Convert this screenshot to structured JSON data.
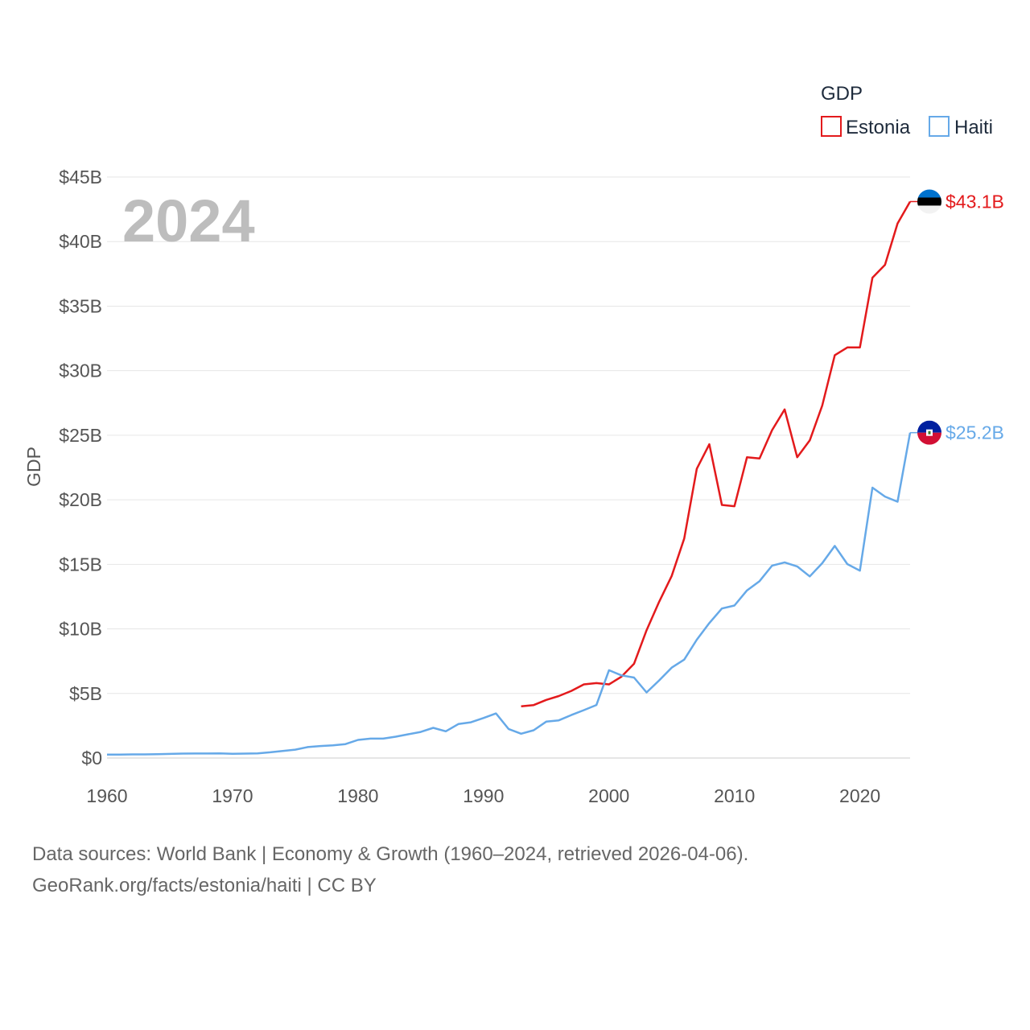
{
  "chart_data": {
    "type": "line",
    "legend_title": "GDP",
    "legend_position": "top-right",
    "ylabel": "GDP",
    "xlabel": "",
    "year_label": "2024",
    "xlim": [
      1960,
      2024
    ],
    "ylim": [
      0,
      45
    ],
    "x_ticks": [
      1960,
      1970,
      1980,
      1990,
      2000,
      2010,
      2020
    ],
    "x_tick_labels": [
      "1960",
      "1970",
      "1980",
      "1990",
      "2000",
      "2010",
      "2020"
    ],
    "y_ticks": [
      0,
      5,
      10,
      15,
      20,
      25,
      30,
      35,
      40,
      45
    ],
    "y_tick_labels": [
      "$0",
      "$5B",
      "$10B",
      "$15B",
      "$20B",
      "$25B",
      "$30B",
      "$35B",
      "$40B",
      "$45B"
    ],
    "grid": true,
    "series": [
      {
        "name": "Estonia",
        "color": "#e31a1c",
        "end_label": "$43.1B",
        "flag": "estonia-flag",
        "x": [
          1993,
          1994,
          1995,
          1996,
          1997,
          1998,
          1999,
          2000,
          2001,
          2002,
          2003,
          2004,
          2005,
          2006,
          2007,
          2008,
          2009,
          2010,
          2011,
          2012,
          2013,
          2014,
          2015,
          2016,
          2017,
          2018,
          2019,
          2020,
          2021,
          2022,
          2023,
          2024
        ],
        "values": [
          4.0,
          4.1,
          4.5,
          4.8,
          5.2,
          5.7,
          5.8,
          5.7,
          6.3,
          7.3,
          9.9,
          12.1,
          14.1,
          17.0,
          22.4,
          24.3,
          19.6,
          19.5,
          23.3,
          23.2,
          25.4,
          27.0,
          23.3,
          24.6,
          27.3,
          31.2,
          31.8,
          31.8,
          37.2,
          38.2,
          41.4,
          43.1
        ]
      },
      {
        "name": "Haiti",
        "color": "#66a9e8",
        "end_label": "$25.2B",
        "flag": "haiti-flag",
        "x": [
          1960,
          1961,
          1962,
          1963,
          1964,
          1965,
          1966,
          1967,
          1968,
          1969,
          1970,
          1971,
          1972,
          1973,
          1974,
          1975,
          1976,
          1977,
          1978,
          1979,
          1980,
          1981,
          1982,
          1983,
          1984,
          1985,
          1986,
          1987,
          1988,
          1989,
          1990,
          1991,
          1992,
          1993,
          1994,
          1995,
          1996,
          1997,
          1998,
          1999,
          2000,
          2001,
          2002,
          2003,
          2004,
          2005,
          2006,
          2007,
          2008,
          2009,
          2010,
          2011,
          2012,
          2013,
          2014,
          2015,
          2016,
          2017,
          2018,
          2019,
          2020,
          2021,
          2022,
          2023,
          2024
        ],
        "values": [
          0.27,
          0.27,
          0.28,
          0.28,
          0.3,
          0.32,
          0.34,
          0.35,
          0.35,
          0.36,
          0.33,
          0.34,
          0.36,
          0.44,
          0.55,
          0.65,
          0.85,
          0.93,
          0.98,
          1.08,
          1.4,
          1.5,
          1.5,
          1.65,
          1.84,
          2.02,
          2.34,
          2.07,
          2.63,
          2.77,
          3.1,
          3.45,
          2.25,
          1.88,
          2.15,
          2.82,
          2.92,
          3.33,
          3.71,
          4.11,
          6.8,
          6.4,
          6.23,
          5.08,
          6.01,
          7.0,
          7.62,
          9.16,
          10.45,
          11.58,
          11.81,
          12.98,
          13.7,
          14.9,
          15.15,
          14.84,
          14.07,
          15.09,
          16.43,
          15.02,
          14.51,
          20.94,
          20.25,
          19.85,
          25.2
        ]
      }
    ]
  },
  "footer": {
    "line1": "Data sources: World Bank | Economy & Growth (1960–2024, retrieved 2026-04-06).",
    "line2": "GeoRank.org/facts/estonia/haiti | CC BY"
  }
}
